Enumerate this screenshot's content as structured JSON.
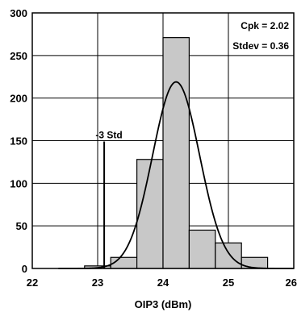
{
  "chart_data": {
    "type": "bar",
    "xlabel": "OIP3 (dBm)",
    "ylabel": "",
    "xlim": [
      22,
      26
    ],
    "ylim": [
      0,
      300
    ],
    "x_ticks": [
      22,
      23,
      24,
      25,
      26
    ],
    "y_ticks": [
      0,
      50,
      100,
      150,
      200,
      250,
      300
    ],
    "grid": true,
    "bin_edges": [
      22.8,
      23.2,
      23.6,
      24.0,
      24.4,
      24.8,
      25.2,
      25.6
    ],
    "values": [
      3,
      13,
      128,
      271,
      45,
      30,
      13
    ],
    "bar_color": "#c8c8c8",
    "normal_curve": {
      "mean": 24.2,
      "stdev": 0.36,
      "peak": 219
    },
    "marker": {
      "label": "-3 Std",
      "x": 23.1,
      "y_top": 149
    },
    "stats": [
      "Cpk = 2.02",
      "Stdev = 0.36"
    ]
  }
}
